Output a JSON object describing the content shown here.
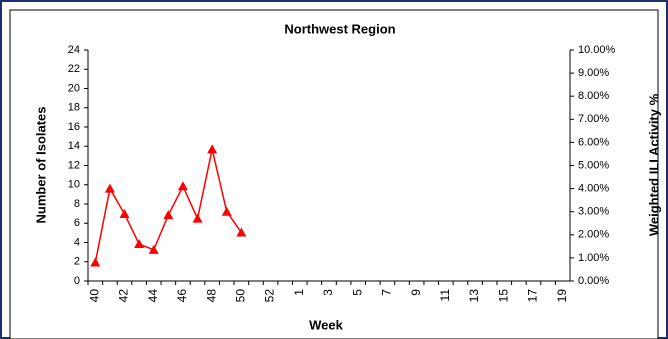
{
  "chart_data": {
    "type": "line",
    "title": "Northwest Region",
    "x_label": "Week",
    "y_label": "Number of Isolates",
    "y2_label": "Weighted ILI Activity %",
    "categories": [
      "40",
      null,
      "42",
      null,
      "44",
      null,
      "46",
      null,
      "48",
      null,
      "50",
      null,
      "52",
      null,
      "1",
      null,
      "3",
      null,
      "5",
      null,
      "7",
      null,
      "9",
      null,
      "11",
      null,
      "13",
      null,
      "15",
      null,
      "17",
      null,
      "19"
    ],
    "series": [
      {
        "color": "#ff0000",
        "axis": "y2",
        "values": [
          0.8,
          4.0,
          2.9,
          1.6,
          1.35,
          2.85,
          4.1,
          2.7,
          5.7,
          3.0,
          2.1,
          null,
          null,
          null,
          null,
          null,
          null,
          null,
          null,
          null,
          null,
          null,
          null,
          null,
          null,
          null,
          null,
          null,
          null,
          null,
          null,
          null,
          null
        ]
      }
    ],
    "ylim": [
      0,
      24
    ],
    "yticks": [
      0,
      2,
      4,
      6,
      8,
      10,
      12,
      14,
      16,
      18,
      20,
      22,
      24
    ],
    "y2lim": [
      0,
      10
    ],
    "y2ticks": [
      {
        "value": 0,
        "label": "0.00%"
      },
      {
        "value": 1,
        "label": "1.00%"
      },
      {
        "value": 2,
        "label": "2.00%"
      },
      {
        "value": 3,
        "label": "3.00%"
      },
      {
        "value": 4,
        "label": "4.00%"
      },
      {
        "value": 5,
        "label": "5.00%"
      },
      {
        "value": 6,
        "label": "6.00%"
      },
      {
        "value": 7,
        "label": "7.00%"
      },
      {
        "value": 8,
        "label": "8.00%"
      },
      {
        "value": 9,
        "label": "9.00%"
      },
      {
        "value": 10,
        "label": "10.00%"
      }
    ],
    "grid": false
  }
}
